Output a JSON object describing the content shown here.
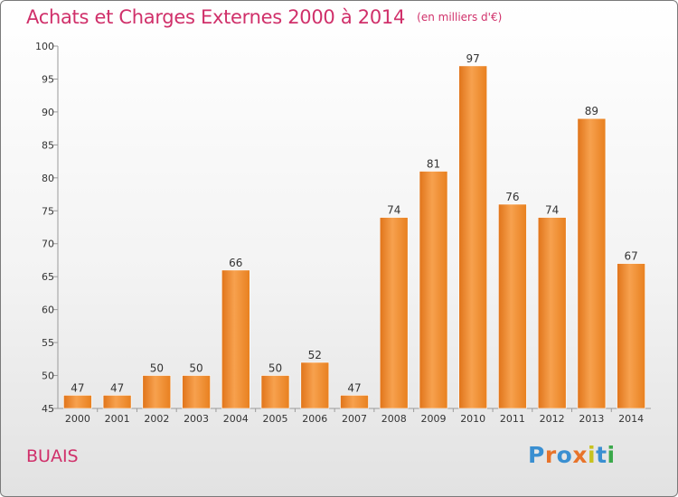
{
  "chart_data": {
    "type": "bar",
    "title": "Achats et Charges Externes 2000 à 2014",
    "subtitle": "(en milliers d'€)",
    "categories": [
      "2000",
      "2001",
      "2002",
      "2003",
      "2004",
      "2005",
      "2006",
      "2007",
      "2008",
      "2009",
      "2010",
      "2011",
      "2012",
      "2013",
      "2014"
    ],
    "values": [
      47,
      47,
      50,
      50,
      66,
      50,
      52,
      47,
      74,
      81,
      97,
      76,
      74,
      89,
      67
    ],
    "ylim": [
      45,
      100
    ],
    "yticks": [
      45,
      50,
      55,
      60,
      65,
      70,
      75,
      80,
      85,
      90,
      95,
      100
    ],
    "grid": false,
    "bar_color": "#f08a2c",
    "data_labels": true
  },
  "footer": {
    "commune": "BUAIS",
    "brand_letters": [
      "P",
      "r",
      "o",
      "x",
      "i",
      "t",
      "i"
    ],
    "brand_colors": [
      "#3a8fd1",
      "#e8732a",
      "#3a8fd1",
      "#e8732a",
      "#c8c21e",
      "#3a8fd1",
      "#3aa84a"
    ]
  }
}
